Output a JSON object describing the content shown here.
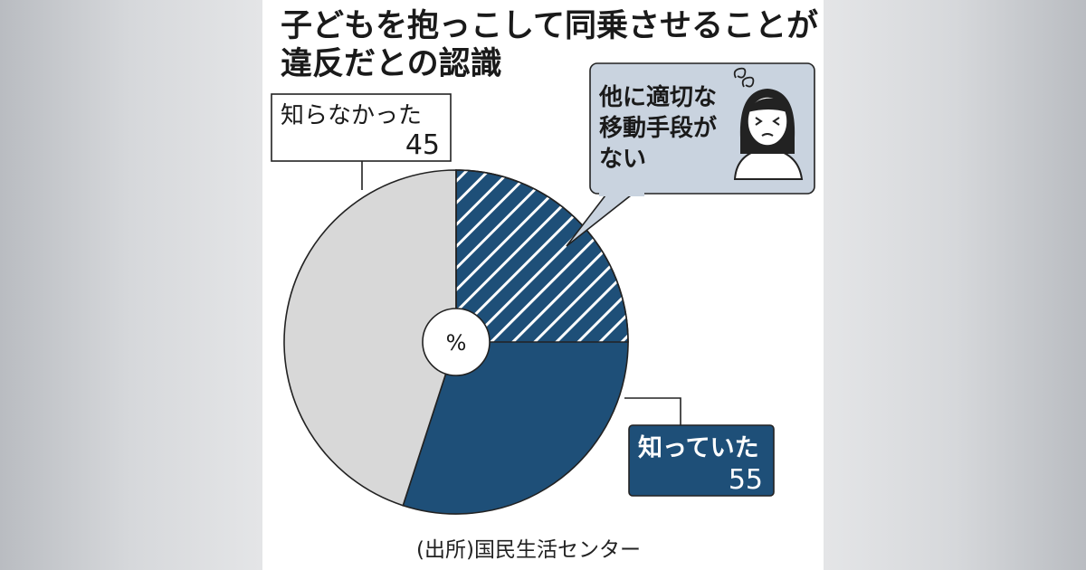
{
  "title_lines": [
    "子どもを抱っこして同乗させることが",
    "違反だとの認識"
  ],
  "source": "(出所)国民生活センター",
  "colors": {
    "known": "#1e4f78",
    "unknown": "#d8d8d8",
    "callout_bg": "#c9d3df",
    "hatch": "#ffffff",
    "border": "#222222"
  },
  "chart_data": {
    "type": "pie",
    "unit": "%",
    "slices": [
      {
        "label": "知っていた",
        "value": 55,
        "color": "#1e4f78"
      },
      {
        "label": "知らなかった",
        "value": 45,
        "color": "#d8d8d8"
      }
    ],
    "sub_segment": {
      "parent": "知っていた",
      "label": "他に適切な移動手段がない",
      "hatched": true
    },
    "callout_lines": [
      "他に適切な",
      "移動手段が",
      "ない"
    ],
    "callout_icon": "troubled-woman-icon"
  }
}
